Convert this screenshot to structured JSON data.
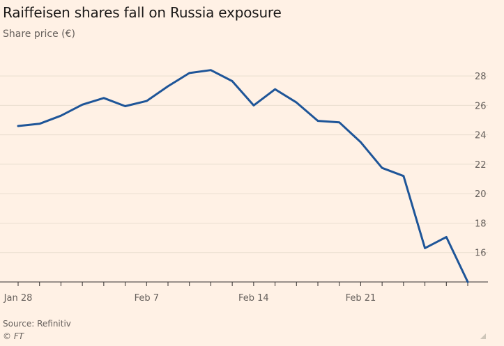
{
  "title": "Raiffeisen shares fall on Russia exposure",
  "subtitle": "Share price (€)",
  "source": "Source: Refinitiv",
  "credit": "© FT",
  "colors": {
    "background": "#fff1e5",
    "line": "#1e5598",
    "grid": "#e9decf",
    "axis": "#33302e"
  },
  "chart_data": {
    "type": "line",
    "title": "Raiffeisen shares fall on Russia exposure",
    "ylabel": "Share price (€)",
    "xlabel": "",
    "ylim": [
      14,
      29
    ],
    "yticks": [
      16,
      18,
      20,
      22,
      24,
      26,
      28
    ],
    "y_axis_position": "right",
    "grid": true,
    "x_tick_labels": [
      {
        "index": 0,
        "label": "Jan 28"
      },
      {
        "index": 6,
        "label": "Feb 7"
      },
      {
        "index": 11,
        "label": "Feb 14"
      },
      {
        "index": 16,
        "label": "Feb 21"
      }
    ],
    "series": [
      {
        "x": [
          "Jan 28",
          "Jan 31",
          "Feb 1",
          "Feb 2",
          "Feb 3",
          "Feb 4",
          "Feb 7",
          "Feb 8",
          "Feb 9",
          "Feb 10",
          "Feb 11",
          "Feb 14",
          "Feb 15",
          "Feb 16",
          "Feb 17",
          "Feb 18",
          "Feb 21",
          "Feb 22",
          "Feb 23",
          "Feb 24",
          "Feb 25",
          "Feb 28"
        ],
        "values": [
          24.6,
          24.75,
          25.3,
          26.05,
          26.5,
          25.95,
          26.3,
          27.3,
          28.2,
          28.4,
          27.65,
          26.0,
          27.1,
          26.2,
          24.95,
          24.85,
          23.5,
          21.75,
          21.2,
          16.3,
          17.05,
          14.0
        ]
      }
    ]
  }
}
